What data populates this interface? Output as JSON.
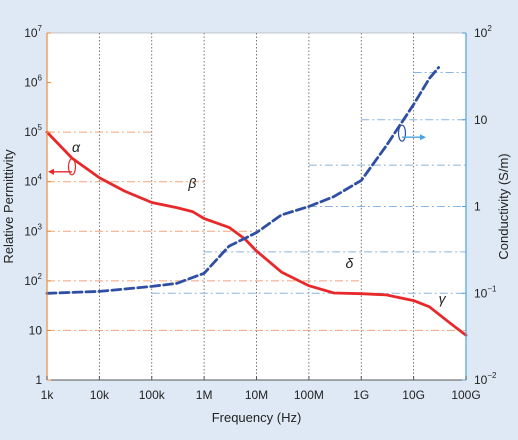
{
  "chart_data": {
    "type": "line",
    "title": "",
    "xlabel": "Frequency (Hz)",
    "ylabel_left": "Relative Permittivity",
    "ylabel_right": "Conductivity (S/m)",
    "x_scale": "log",
    "x_range": [
      1000,
      100000000000
    ],
    "x_ticks": [
      {
        "value": 1000,
        "label": "1k"
      },
      {
        "value": 10000,
        "label": "10k"
      },
      {
        "value": 100000,
        "label": "100k"
      },
      {
        "value": 1000000,
        "label": "1M"
      },
      {
        "value": 10000000,
        "label": "10M"
      },
      {
        "value": 100000000,
        "label": "100M"
      },
      {
        "value": 1000000000,
        "label": "1G"
      },
      {
        "value": 10000000000,
        "label": "10G"
      },
      {
        "value": 100000000000,
        "label": "100G"
      }
    ],
    "y_left_scale": "log",
    "y_left_range": [
      1,
      10000000
    ],
    "y_left_ticks": [
      {
        "value": 1,
        "base": "1",
        "exp": ""
      },
      {
        "value": 10,
        "base": "10",
        "exp": ""
      },
      {
        "value": 100,
        "base": "10",
        "exp": "2"
      },
      {
        "value": 1000,
        "base": "10",
        "exp": "3"
      },
      {
        "value": 10000,
        "base": "10",
        "exp": "4"
      },
      {
        "value": 100000,
        "base": "10",
        "exp": "5"
      },
      {
        "value": 1000000,
        "base": "10",
        "exp": "6"
      },
      {
        "value": 10000000,
        "base": "10",
        "exp": "7"
      }
    ],
    "y_right_scale": "log",
    "y_right_range": [
      0.01,
      100
    ],
    "y_right_ticks": [
      {
        "value": 0.01,
        "base": "10",
        "exp": "−2"
      },
      {
        "value": 0.1,
        "base": "10",
        "exp": "−1"
      },
      {
        "value": 1,
        "base": "1",
        "exp": ""
      },
      {
        "value": 10,
        "base": "10",
        "exp": ""
      },
      {
        "value": 100,
        "base": "10",
        "exp": "2"
      }
    ],
    "grid": "vertical dotted at decades",
    "series": [
      {
        "axis": "left",
        "style": "solid",
        "color": "#e8292b",
        "x": [
          1000,
          3000,
          10000,
          30000,
          100000,
          300000,
          600000,
          1000000,
          3000000,
          6000000,
          10000000,
          30000000,
          100000000,
          300000000,
          1000000000,
          3000000000,
          10000000000,
          20000000000,
          50000000000,
          100000000000
        ],
        "y": [
          100000,
          30000,
          12000,
          6500,
          3800,
          3000,
          2500,
          1800,
          1200,
          700,
          400,
          150,
          80,
          57,
          55,
          52,
          40,
          30,
          14,
          8
        ]
      },
      {
        "axis": "right",
        "style": "dashed",
        "color": "#2e4fa3",
        "x": [
          1000,
          10000,
          100000,
          300000,
          1000000,
          3000000,
          10000000,
          30000000,
          100000000,
          300000000,
          1000000000,
          3000000000,
          10000000000,
          20000000000,
          30000000000
        ],
        "y": [
          0.1,
          0.105,
          0.12,
          0.13,
          0.17,
          0.35,
          0.5,
          0.8,
          1.0,
          1.3,
          2,
          5,
          15,
          30,
          40
        ]
      }
    ],
    "reference_lines": [
      {
        "axis": "left",
        "color": "#f0a57a",
        "y": 100000,
        "x_range": [
          1000,
          100000
        ]
      },
      {
        "axis": "left",
        "color": "#f0a57a",
        "y": 10000,
        "x_range": [
          1000,
          1000000
        ]
      },
      {
        "axis": "left",
        "color": "#f0a57a",
        "y": 1000,
        "x_range": [
          1000,
          10000000
        ]
      },
      {
        "axis": "left",
        "color": "#f0a57a",
        "y": 100,
        "x_range": [
          1000,
          1000000000
        ]
      },
      {
        "axis": "left",
        "color": "#f0a57a",
        "y": 10,
        "x_range": [
          1000,
          100000000000
        ]
      },
      {
        "axis": "right",
        "color": "#8ab4df",
        "y": 0.1,
        "x_range": [
          100000,
          100000000000
        ]
      },
      {
        "axis": "right",
        "color": "#8ab4df",
        "y": 0.3,
        "x_range": [
          1000000,
          100000000000
        ]
      },
      {
        "axis": "right",
        "color": "#8ab4df",
        "y": 1,
        "x_range": [
          100000000,
          100000000000
        ]
      },
      {
        "axis": "right",
        "color": "#8ab4df",
        "y": 3,
        "x_range": [
          100000000,
          100000000000
        ]
      },
      {
        "axis": "right",
        "color": "#8ab4df",
        "y": 10,
        "x_range": [
          1000000000,
          100000000000
        ]
      },
      {
        "axis": "right",
        "color": "#8ab4df",
        "y": 35,
        "x_range": [
          10000000000,
          100000000000
        ]
      }
    ],
    "annotations": [
      {
        "text": "α",
        "x": 3000,
        "axis": "left",
        "y": 40000
      },
      {
        "text": "β",
        "x": 500000,
        "axis": "left",
        "y": 7500
      },
      {
        "text": "δ",
        "x": 500000000,
        "axis": "left",
        "y": 180
      },
      {
        "text": "γ",
        "x": 30000000000,
        "axis": "left",
        "y": 35
      }
    ]
  },
  "colors": {
    "background": "#dfe9f5",
    "plot_background": "#ffffff",
    "permittivity": "#e8292b",
    "conductivity": "#2e4fa3",
    "left_axis": "#f08c3c",
    "right_axis": "#4aa3e0"
  },
  "legend": {
    "permittivity_marker": "arrow-left",
    "conductivity_marker": "arrow-right"
  }
}
